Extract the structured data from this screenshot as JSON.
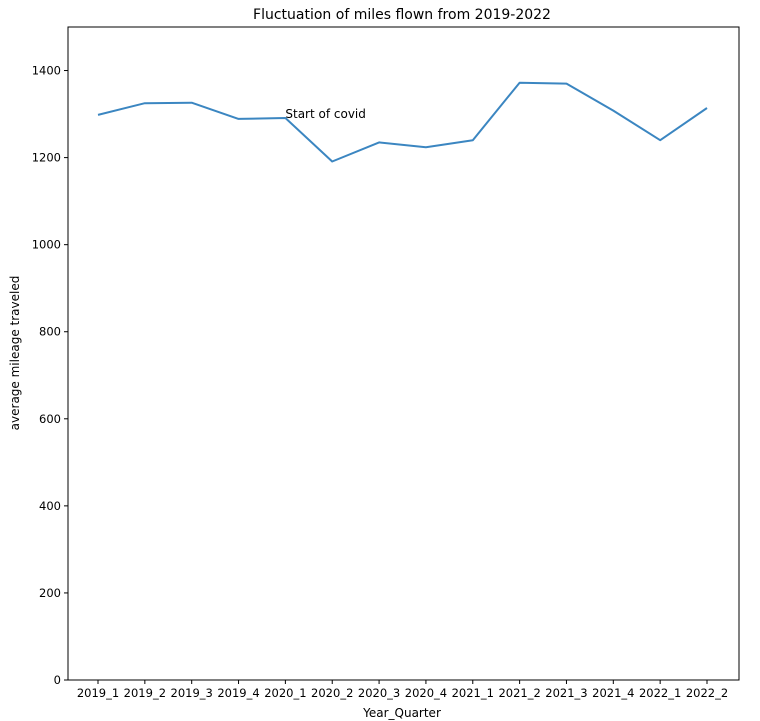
{
  "chart_data": {
    "type": "line",
    "title": "Fluctuation of miles flown from 2019-2022",
    "xlabel": "Year_Quarter",
    "ylabel": "average mileage traveled",
    "categories": [
      "2019_1",
      "2019_2",
      "2019_3",
      "2019_4",
      "2020_1",
      "2020_2",
      "2020_3",
      "2020_4",
      "2021_1",
      "2021_2",
      "2021_3",
      "2021_4",
      "2022_1",
      "2022_2"
    ],
    "series": [
      {
        "values": [
          1298,
          1325,
          1326,
          1289,
          1291,
          1191,
          1235,
          1224,
          1240,
          1372,
          1370,
          1308,
          1240,
          1314
        ],
        "color": "#3b86c1"
      }
    ],
    "ylim": [
      0,
      1500
    ],
    "yticks": [
      0,
      200,
      400,
      600,
      800,
      1000,
      1200,
      1400
    ],
    "annotations": [
      {
        "text": "Start of covid",
        "x": "2020_1",
        "y": 1300
      }
    ],
    "grid": false,
    "legend": "none"
  }
}
